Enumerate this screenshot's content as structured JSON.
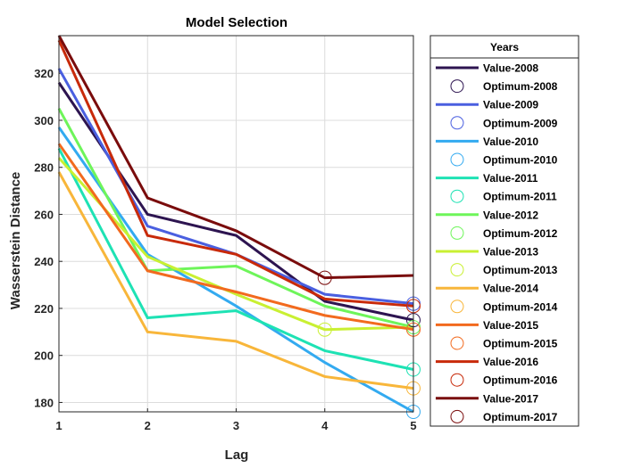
{
  "chart_data": {
    "type": "line",
    "title": "Model Selection",
    "xlabel": "Lag",
    "ylabel": "Wasserstein Distance",
    "x": [
      1,
      2,
      3,
      4,
      5
    ],
    "xlim": [
      1,
      5
    ],
    "ylim": [
      176,
      336
    ],
    "xticks": [
      "1",
      "2",
      "3",
      "4",
      "5"
    ],
    "yticks": [
      "180",
      "200",
      "220",
      "240",
      "260",
      "280",
      "300",
      "320"
    ],
    "grid": true,
    "legend_title": "Years",
    "legend_position": "outside-right",
    "series": [
      {
        "name": "Value-2008",
        "color": "#2d1450",
        "values": [
          316,
          260,
          251,
          223,
          215
        ],
        "optimum_name": "Optimum-2008",
        "optimum_x": 5,
        "optimum_y": 215
      },
      {
        "name": "Value-2009",
        "color": "#4a5fe0",
        "values": [
          322,
          255,
          243,
          226,
          222
        ],
        "optimum_name": "Optimum-2009",
        "optimum_x": 5,
        "optimum_y": 222
      },
      {
        "name": "Value-2010",
        "color": "#33aaf0",
        "values": [
          297,
          243,
          221,
          197,
          176
        ],
        "optimum_name": "Optimum-2010",
        "optimum_x": 5,
        "optimum_y": 176
      },
      {
        "name": "Value-2011",
        "color": "#1ee2b4",
        "values": [
          288,
          216,
          219,
          202,
          194
        ],
        "optimum_name": "Optimum-2011",
        "optimum_x": 5,
        "optimum_y": 194
      },
      {
        "name": "Value-2012",
        "color": "#6ef55a",
        "values": [
          305,
          236,
          238,
          221,
          212
        ],
        "optimum_name": "Optimum-2012",
        "optimum_x": 5,
        "optimum_y": 212
      },
      {
        "name": "Value-2013",
        "color": "#c9f032",
        "values": [
          284,
          242,
          226,
          211,
          212
        ],
        "optimum_name": "Optimum-2013",
        "optimum_x": 4,
        "optimum_y": 211
      },
      {
        "name": "Value-2014",
        "color": "#f8b63a",
        "values": [
          278,
          210,
          206,
          191,
          186
        ],
        "optimum_name": "Optimum-2014",
        "optimum_x": 5,
        "optimum_y": 186
      },
      {
        "name": "Value-2015",
        "color": "#f26a1e",
        "values": [
          290,
          236,
          227,
          217,
          211
        ],
        "optimum_name": "Optimum-2015",
        "optimum_x": 5,
        "optimum_y": 211
      },
      {
        "name": "Value-2016",
        "color": "#c82a0a",
        "values": [
          334,
          251,
          243,
          224,
          221
        ],
        "optimum_name": "Optimum-2016",
        "optimum_x": 5,
        "optimum_y": 221
      },
      {
        "name": "Value-2017",
        "color": "#7a0c0c",
        "values": [
          336,
          267,
          253,
          233,
          234
        ],
        "optimum_name": "Optimum-2017",
        "optimum_x": 4,
        "optimum_y": 233
      }
    ]
  }
}
